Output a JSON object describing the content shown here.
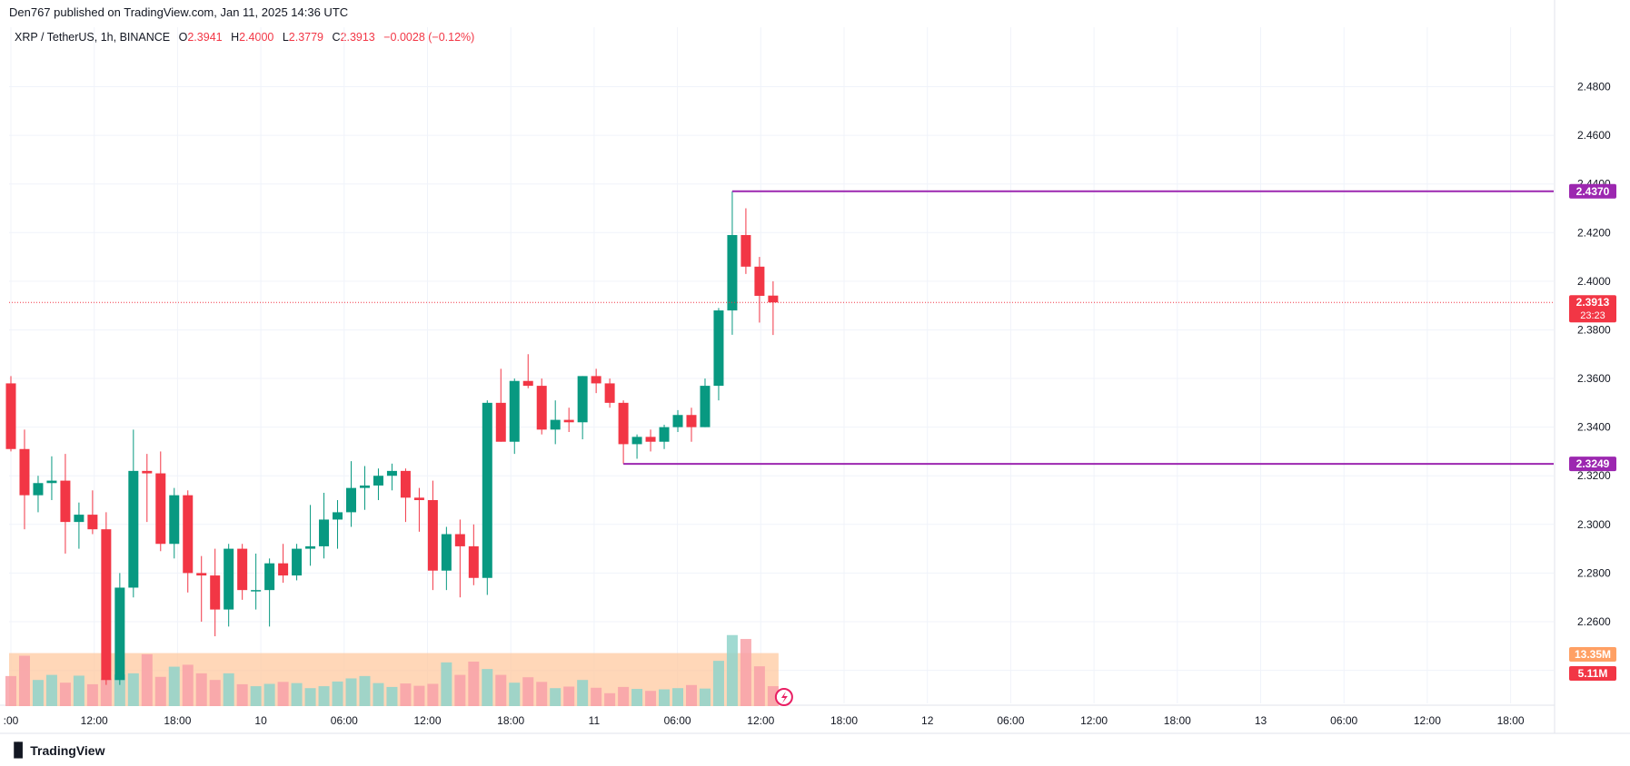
{
  "header": {
    "published": "Den767 published on TradingView.com, Jan 11, 2025 14:36 UTC"
  },
  "symbol": {
    "name": "XRP / TetherUS, 1h, BINANCE",
    "open_label": "O",
    "open": "2.3941",
    "high_label": "H",
    "high": "2.4000",
    "low_label": "L",
    "low": "2.3779",
    "close_label": "C",
    "close": "2.3913",
    "change": "−0.0028 (−0.12%)"
  },
  "colors": {
    "up": "#089981",
    "down": "#f23645",
    "up_vol": "#8fd3ca",
    "down_vol": "#f8a1a8",
    "level_line": "#9c27b0",
    "vol_ma": "#ffcaa0",
    "grid": "#f0f3fa"
  },
  "price_axis": {
    "ticks": [
      "2.4800",
      "2.4600",
      "2.4400",
      "2.4200",
      "2.4000",
      "2.3800",
      "2.3600",
      "2.3400",
      "2.3200",
      "2.3000",
      "2.2800",
      "2.2600",
      "2.2400"
    ],
    "range": [
      2.232,
      2.497
    ]
  },
  "time_axis": {
    "labels": [
      ":00",
      "12:00",
      "18:00",
      "10",
      "06:00",
      "12:00",
      "18:00",
      "11",
      "06:00",
      "12:00",
      "18:00",
      "12",
      "06:00",
      "12:00",
      "18:00",
      "13",
      "06:00",
      "12:00",
      "18:00"
    ]
  },
  "markers": {
    "current_price": "2.3913",
    "countdown": "23:23",
    "resistance": "2.4370",
    "support": "2.3249",
    "volume_ma": "13.35M",
    "volume": "5.11M"
  },
  "chart_data": {
    "type": "candlestick",
    "interval": "1h",
    "symbol": "XRP / TetherUS",
    "levels": [
      2.437,
      2.3249
    ],
    "candles": [
      [
        2.358,
        2.361,
        2.33,
        2.331
      ],
      [
        2.331,
        2.339,
        2.298,
        2.312
      ],
      [
        2.312,
        2.32,
        2.305,
        2.317
      ],
      [
        2.317,
        2.328,
        2.31,
        2.318
      ],
      [
        2.318,
        2.329,
        2.288,
        2.301
      ],
      [
        2.301,
        2.309,
        2.29,
        2.304
      ],
      [
        2.304,
        2.314,
        2.296,
        2.298
      ],
      [
        2.298,
        2.305,
        2.234,
        2.236
      ],
      [
        2.236,
        2.28,
        2.234,
        2.274
      ],
      [
        2.274,
        2.339,
        2.27,
        2.322
      ],
      [
        2.322,
        2.329,
        2.301,
        2.321
      ],
      [
        2.321,
        2.33,
        2.289,
        2.292
      ],
      [
        2.292,
        2.315,
        2.286,
        2.312
      ],
      [
        2.312,
        2.314,
        2.272,
        2.28
      ],
      [
        2.28,
        2.287,
        2.26,
        2.279
      ],
      [
        2.279,
        2.29,
        2.254,
        2.265
      ],
      [
        2.265,
        2.292,
        2.258,
        2.29
      ],
      [
        2.29,
        2.292,
        2.269,
        2.273
      ],
      [
        2.273,
        2.288,
        2.265,
        2.273
      ],
      [
        2.273,
        2.286,
        2.258,
        2.284
      ],
      [
        2.284,
        2.292,
        2.276,
        2.279
      ],
      [
        2.279,
        2.292,
        2.277,
        2.29
      ],
      [
        2.29,
        2.308,
        2.283,
        2.291
      ],
      [
        2.291,
        2.313,
        2.286,
        2.302
      ],
      [
        2.302,
        2.31,
        2.29,
        2.305
      ],
      [
        2.305,
        2.326,
        2.299,
        2.315
      ],
      [
        2.315,
        2.324,
        2.306,
        2.316
      ],
      [
        2.316,
        2.323,
        2.31,
        2.32
      ],
      [
        2.32,
        2.325,
        2.314,
        2.322
      ],
      [
        2.322,
        2.323,
        2.301,
        2.311
      ],
      [
        2.311,
        2.315,
        2.297,
        2.31
      ],
      [
        2.31,
        2.318,
        2.273,
        2.281
      ],
      [
        2.281,
        2.299,
        2.273,
        2.296
      ],
      [
        2.296,
        2.302,
        2.27,
        2.291
      ],
      [
        2.291,
        2.3,
        2.275,
        2.278
      ],
      [
        2.278,
        2.351,
        2.271,
        2.35
      ],
      [
        2.35,
        2.364,
        2.334,
        2.334
      ],
      [
        2.334,
        2.36,
        2.329,
        2.359
      ],
      [
        2.359,
        2.37,
        2.356,
        2.357
      ],
      [
        2.357,
        2.36,
        2.337,
        2.339
      ],
      [
        2.339,
        2.351,
        2.333,
        2.343
      ],
      [
        2.343,
        2.348,
        2.338,
        2.342
      ],
      [
        2.342,
        2.361,
        2.335,
        2.361
      ],
      [
        2.361,
        2.364,
        2.354,
        2.358
      ],
      [
        2.358,
        2.36,
        2.348,
        2.35
      ],
      [
        2.35,
        2.351,
        2.325,
        2.333
      ],
      [
        2.333,
        2.337,
        2.327,
        2.336
      ],
      [
        2.336,
        2.339,
        2.33,
        2.334
      ],
      [
        2.334,
        2.341,
        2.331,
        2.34
      ],
      [
        2.34,
        2.347,
        2.338,
        2.345
      ],
      [
        2.345,
        2.348,
        2.334,
        2.34
      ],
      [
        2.34,
        2.36,
        2.34,
        2.357
      ],
      [
        2.357,
        2.389,
        2.351,
        2.388
      ],
      [
        2.388,
        2.437,
        2.378,
        2.419
      ],
      [
        2.419,
        2.43,
        2.403,
        2.406
      ],
      [
        2.406,
        2.41,
        2.383,
        2.394
      ],
      [
        2.3941,
        2.4,
        2.3779,
        2.3913
      ]
    ],
    "volumes_m": [
      7.7,
      12.9,
      6.7,
      8.0,
      6.0,
      7.8,
      5.6,
      7.0,
      8.1,
      8.4,
      13.3,
      7.5,
      10.1,
      10.6,
      8.4,
      6.7,
      8.4,
      5.6,
      5.1,
      5.7,
      6.2,
      5.9,
      4.6,
      5.1,
      6.3,
      7.1,
      7.7,
      5.9,
      4.9,
      5.8,
      5.2,
      5.7,
      11.2,
      8.0,
      11.4,
      9.5,
      8.0,
      6.0,
      7.4,
      6.2,
      4.6,
      5.0,
      6.7,
      4.7,
      3.3,
      4.9,
      4.4,
      3.9,
      4.3,
      4.6,
      5.4,
      4.5,
      11.6,
      18.2,
      17.2,
      10.2,
      5.11
    ],
    "hollow_volume_bars": [
      {
        "index": 1,
        "value_m": 15.3
      },
      {
        "index": 31,
        "value_m": 11.5
      },
      {
        "index": 32,
        "value_m": 14.2
      },
      {
        "index": 35,
        "value_m": 14.9
      },
      {
        "index": 9,
        "value_m": 12.1
      }
    ],
    "volume_ma_m": 13.35
  }
}
